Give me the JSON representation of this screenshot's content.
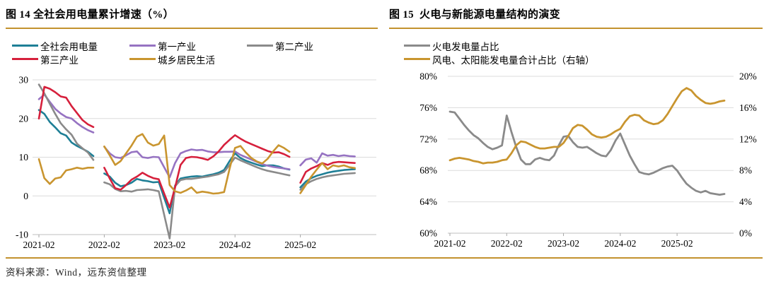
{
  "page": {
    "source_note": "资料来源：Wind，远东资信整理"
  },
  "chart_data": [
    {
      "type": "line",
      "title": "图 14 全社会用电量累计增速（%）",
      "legend_position": "top-left",
      "grid": true,
      "x": [
        "2021-02",
        "2021-03",
        "2021-04",
        "2021-05",
        "2021-06",
        "2021-07",
        "2021-08",
        "2021-09",
        "2021-10",
        "2021-11",
        "2021-12",
        "2022-01",
        "2022-02",
        "2022-03",
        "2022-04",
        "2022-05",
        "2022-06",
        "2022-07",
        "2022-08",
        "2022-09",
        "2022-10",
        "2022-11",
        "2022-12",
        "2023-01",
        "2023-02",
        "2023-03",
        "2023-04",
        "2023-05",
        "2023-06",
        "2023-07",
        "2023-08",
        "2023-09",
        "2023-10",
        "2023-11",
        "2023-12",
        "2024-01",
        "2024-02",
        "2024-03",
        "2024-04",
        "2024-05",
        "2024-06",
        "2024-07",
        "2024-08",
        "2024-09",
        "2024-10",
        "2024-11",
        "2024-12",
        "2025-01",
        "2025-02",
        "2025-03",
        "2025-04",
        "2025-05",
        "2025-06",
        "2025-07",
        "2025-08",
        "2025-09",
        "2025-10",
        "2025-11",
        "2025-12"
      ],
      "x_ticks": [
        {
          "label": "2021-02",
          "index": 0
        },
        {
          "label": "2022-02",
          "index": 12
        },
        {
          "label": "2023-02",
          "index": 24
        },
        {
          "label": "2024-02",
          "index": 36
        },
        {
          "label": "2025-02",
          "index": 48
        }
      ],
      "y_left": {
        "min": -10,
        "max": 30,
        "ticks": [
          {
            "label": "30",
            "value": 30
          },
          {
            "label": "20",
            "value": 20
          },
          {
            "label": "10",
            "value": 10
          },
          {
            "label": "0",
            "value": 0
          },
          {
            "label": "-10",
            "value": -10
          }
        ]
      },
      "series": [
        {
          "name": "全社会用电量",
          "color": "#1E7F96",
          "axis": "left",
          "values": [
            22.2,
            21.2,
            19.1,
            17.7,
            16.2,
            15.6,
            13.8,
            12.9,
            12.2,
            11.4,
            10.3,
            null,
            5.8,
            5.0,
            3.4,
            2.5,
            2.8,
            3.4,
            4.4,
            4.0,
            3.8,
            3.5,
            3.6,
            -0.5,
            -4.5,
            2.7,
            4.5,
            4.8,
            5.0,
            5.1,
            5.0,
            5.3,
            5.6,
            6.0,
            6.7,
            9.0,
            11.0,
            9.8,
            9.1,
            8.6,
            8.1,
            7.7,
            7.9,
            7.9,
            7.6,
            7.1,
            6.8,
            null,
            2.2,
            3.7,
            4.6,
            5.2,
            5.6,
            6.0,
            6.3,
            6.5,
            6.7,
            6.8,
            6.9
          ]
        },
        {
          "name": "第一产业",
          "color": "#9673C2",
          "axis": "left",
          "values": [
            25.0,
            26.2,
            24.3,
            22.5,
            21.3,
            20.4,
            20.0,
            18.8,
            17.8,
            17.0,
            16.4,
            null,
            12.7,
            11.0,
            10.0,
            9.8,
            10.5,
            11.3,
            11.5,
            10.0,
            9.8,
            10.1,
            10.0,
            7.4,
            4.8,
            8.5,
            11.0,
            11.6,
            12.0,
            11.8,
            11.9,
            11.5,
            11.3,
            11.3,
            11.4,
            11.4,
            11.5,
            10.6,
            10.0,
            9.4,
            8.8,
            8.2,
            7.8,
            7.5,
            7.3,
            7.1,
            6.9,
            null,
            7.9,
            9.4,
            9.7,
            8.6,
            11.0,
            10.4,
            10.6,
            10.3,
            10.5,
            10.3,
            10.2
          ]
        },
        {
          "name": "第二产业",
          "color": "#8A8A8A",
          "axis": "left",
          "values": [
            28.8,
            26.5,
            23.8,
            21.2,
            18.8,
            17.2,
            15.8,
            13.5,
            12.3,
            11.2,
            9.3,
            null,
            3.5,
            3.0,
            1.8,
            1.2,
            1.3,
            1.1,
            1.5,
            1.6,
            1.7,
            1.5,
            1.2,
            -4.9,
            -11.0,
            2.5,
            4.1,
            4.4,
            4.4,
            4.6,
            4.8,
            5.0,
            5.3,
            5.6,
            6.2,
            8.0,
            9.9,
            9.2,
            8.6,
            8.0,
            7.4,
            6.9,
            6.5,
            6.2,
            5.9,
            5.6,
            5.3,
            null,
            1.6,
            3.0,
            3.8,
            4.4,
            4.8,
            5.1,
            5.3,
            5.5,
            5.7,
            5.8,
            5.9
          ]
        },
        {
          "name": "第三产业",
          "color": "#D6203C",
          "axis": "left",
          "values": [
            20.0,
            28.2,
            27.7,
            26.8,
            25.7,
            25.4,
            23.2,
            21.4,
            19.6,
            18.5,
            17.8,
            null,
            7.3,
            4.5,
            2.0,
            1.6,
            2.8,
            4.2,
            5.0,
            6.0,
            5.2,
            4.6,
            4.3,
            0.6,
            -3.0,
            2.2,
            8.0,
            9.8,
            10.1,
            10.0,
            9.7,
            9.3,
            10.2,
            11.5,
            13.2,
            14.5,
            15.7,
            14.8,
            14.0,
            13.4,
            12.8,
            12.2,
            11.6,
            11.2,
            11.3,
            10.8,
            10.1,
            null,
            3.4,
            6.2,
            7.1,
            7.7,
            8.5,
            8.0,
            8.6,
            8.8,
            8.7,
            8.6,
            8.5
          ]
        },
        {
          "name": "城乡居民生活",
          "color": "#C9952F",
          "axis": "left",
          "values": [
            9.5,
            4.6,
            3.1,
            4.5,
            4.8,
            6.6,
            6.9,
            7.3,
            7.0,
            7.3,
            7.3,
            null,
            12.8,
            10.5,
            8.0,
            9.0,
            11.0,
            13.0,
            15.3,
            16.0,
            13.8,
            13.0,
            13.4,
            15.6,
            2.8,
            1.2,
            0.8,
            1.4,
            2.2,
            0.8,
            1.1,
            0.9,
            0.6,
            0.7,
            1.0,
            7.0,
            12.4,
            12.9,
            11.2,
            9.8,
            8.9,
            8.4,
            9.6,
            11.5,
            13.1,
            12.4,
            11.4,
            null,
            0.7,
            2.8,
            5.0,
            6.8,
            8.5,
            6.9,
            7.9,
            7.6,
            7.9,
            7.4,
            7.2
          ]
        }
      ]
    },
    {
      "type": "line",
      "title": "图 15  火电与新能源电量结构的演变",
      "legend_position": "top-left",
      "grid": true,
      "x": [
        "2021-02",
        "2021-03",
        "2021-04",
        "2021-05",
        "2021-06",
        "2021-07",
        "2021-08",
        "2021-09",
        "2021-10",
        "2021-11",
        "2021-12",
        "2022-01",
        "2022-02",
        "2022-03",
        "2022-04",
        "2022-05",
        "2022-06",
        "2022-07",
        "2022-08",
        "2022-09",
        "2022-10",
        "2022-11",
        "2022-12",
        "2023-01",
        "2023-02",
        "2023-03",
        "2023-04",
        "2023-05",
        "2023-06",
        "2023-07",
        "2023-08",
        "2023-09",
        "2023-10",
        "2023-11",
        "2023-12",
        "2024-01",
        "2024-02",
        "2024-03",
        "2024-04",
        "2024-05",
        "2024-06",
        "2024-07",
        "2024-08",
        "2024-09",
        "2024-10",
        "2024-11",
        "2024-12",
        "2025-01",
        "2025-02",
        "2025-03",
        "2025-04",
        "2025-05",
        "2025-06",
        "2025-07",
        "2025-08",
        "2025-09",
        "2025-10",
        "2025-11",
        "2025-12"
      ],
      "x_ticks": [
        {
          "label": "2021-02",
          "index": 0
        },
        {
          "label": "2022-02",
          "index": 12
        },
        {
          "label": "2023-02",
          "index": 24
        },
        {
          "label": "2024-02",
          "index": 36
        },
        {
          "label": "2025-02",
          "index": 48
        }
      ],
      "y_left": {
        "min": 60,
        "max": 80,
        "ticks": [
          {
            "label": "80%",
            "value": 80
          },
          {
            "label": "76%",
            "value": 76
          },
          {
            "label": "72%",
            "value": 72
          },
          {
            "label": "68%",
            "value": 68
          },
          {
            "label": "64%",
            "value": 64
          },
          {
            "label": "60%",
            "value": 60
          }
        ]
      },
      "y_right": {
        "min": 0,
        "max": 20,
        "ticks": [
          {
            "label": "20%",
            "value": 20
          },
          {
            "label": "16%",
            "value": 16
          },
          {
            "label": "12%",
            "value": 12
          },
          {
            "label": "8%",
            "value": 8
          },
          {
            "label": "4%",
            "value": 4
          },
          {
            "label": "0%",
            "value": 0
          }
        ]
      },
      "series": [
        {
          "name": "火电发电量占比",
          "color": "#8A8A8A",
          "axis": "left",
          "values": [
            75.5,
            75.4,
            74.6,
            73.8,
            73.1,
            72.5,
            72.1,
            71.5,
            71.0,
            70.7,
            70.9,
            71.2,
            75.0,
            72.9,
            71.0,
            69.4,
            68.8,
            68.8,
            69.4,
            69.6,
            69.4,
            69.3,
            69.9,
            71.2,
            72.3,
            72.4,
            71.6,
            71.0,
            70.9,
            71.0,
            70.6,
            70.2,
            69.9,
            69.8,
            70.6,
            71.8,
            72.7,
            71.3,
            69.9,
            68.8,
            67.8,
            67.6,
            67.5,
            67.7,
            68.0,
            68.3,
            68.5,
            68.6,
            68.0,
            67.1,
            66.3,
            65.8,
            65.4,
            65.2,
            65.4,
            65.1,
            65.0,
            64.9,
            65.0
          ]
        },
        {
          "name": "风电、太阳能发电量合计占比（右轴）",
          "color": "#C9952F",
          "axis": "right",
          "values": [
            9.3,
            9.5,
            9.6,
            9.5,
            9.4,
            9.2,
            9.1,
            8.9,
            9.0,
            9.0,
            9.1,
            9.3,
            9.4,
            10.2,
            11.2,
            11.7,
            11.6,
            11.3,
            11.0,
            10.8,
            10.8,
            10.9,
            11.0,
            11.0,
            11.5,
            12.4,
            13.4,
            13.8,
            13.7,
            13.2,
            12.6,
            12.3,
            12.2,
            12.3,
            12.6,
            13.0,
            13.3,
            14.2,
            14.9,
            15.1,
            15.0,
            14.4,
            14.1,
            13.9,
            14.0,
            14.4,
            15.2,
            16.2,
            17.2,
            18.1,
            18.5,
            18.2,
            17.5,
            17.0,
            16.6,
            16.5,
            16.6,
            16.8,
            16.9
          ]
        }
      ]
    }
  ]
}
